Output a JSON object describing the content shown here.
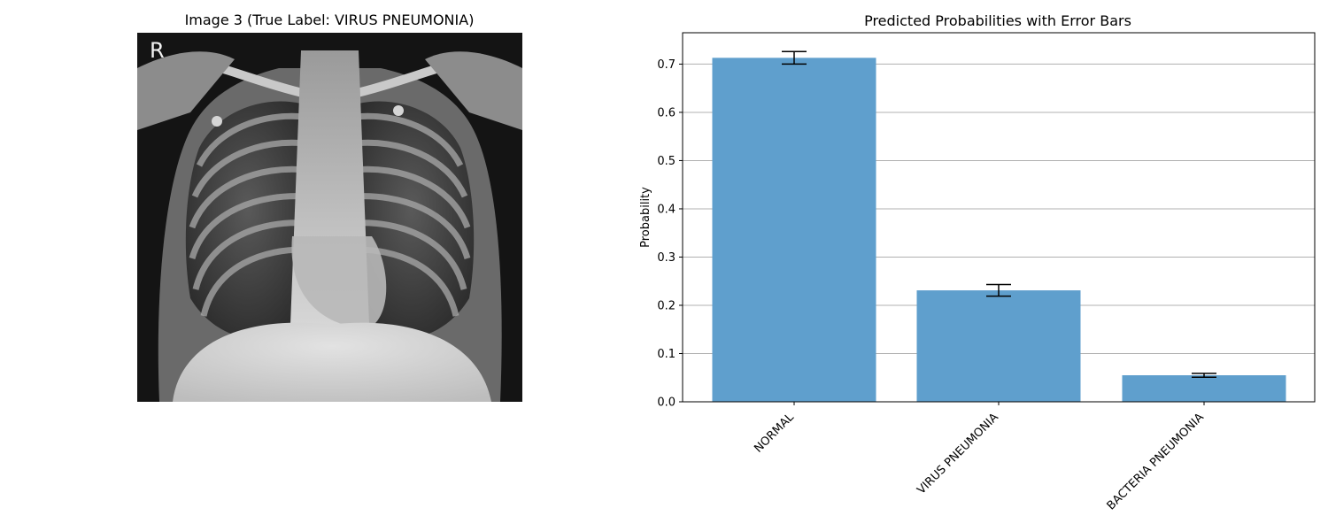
{
  "image_panel": {
    "title": "Image 3 (True Label: VIRUS PNEUMONIA)",
    "marker": "R"
  },
  "chart_data": {
    "type": "bar",
    "title": "Predicted Probabilities with Error Bars",
    "xlabel": "",
    "ylabel": "Probability",
    "categories": [
      "NORMAL",
      "VIRUS PNEUMONIA",
      "BACTERIA PNEUMONIA"
    ],
    "values": [
      0.713,
      0.231,
      0.055
    ],
    "errors": [
      0.013,
      0.012,
      0.004
    ],
    "ylim": [
      0,
      0.765
    ],
    "yticks": [
      "0.0",
      "0.1",
      "0.2",
      "0.3",
      "0.4",
      "0.5",
      "0.6",
      "0.7"
    ],
    "grid": "horizontal",
    "bar_color": "#5f9fcd"
  }
}
